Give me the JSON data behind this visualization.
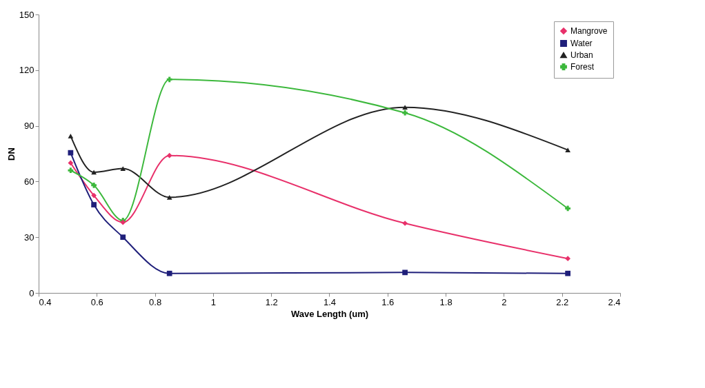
{
  "chart_data": {
    "type": "line",
    "xlabel": "Wave Length (um)",
    "ylabel": "DN",
    "x": [
      0.51,
      0.59,
      0.69,
      0.85,
      1.66,
      2.22
    ],
    "series": [
      {
        "name": "Mangrove",
        "color": "#e8306a",
        "marker": "diamond",
        "values": [
          70,
          52.5,
          38,
          74,
          37.5,
          18.5
        ]
      },
      {
        "name": "Water",
        "color": "#1f1f7a",
        "marker": "square",
        "values": [
          75.5,
          47.5,
          30,
          10.5,
          11,
          10.5
        ]
      },
      {
        "name": "Urban",
        "color": "#222222",
        "marker": "triangle",
        "values": [
          84.5,
          65,
          67,
          51.5,
          100,
          77
        ]
      },
      {
        "name": "Forest",
        "color": "#3cb83c",
        "marker": "cross",
        "values": [
          66,
          58,
          39,
          115,
          97,
          45.5
        ]
      }
    ],
    "xlim": [
      0.4,
      2.4
    ],
    "xticks": [
      0.4,
      0.6,
      0.8,
      1,
      1.2,
      1.4,
      1.6,
      1.8,
      2,
      2.2,
      2.4
    ],
    "ylim": [
      0,
      150
    ],
    "yticks": [
      0,
      30,
      60,
      90,
      120,
      150
    ],
    "grid": false,
    "legend": "top right"
  }
}
